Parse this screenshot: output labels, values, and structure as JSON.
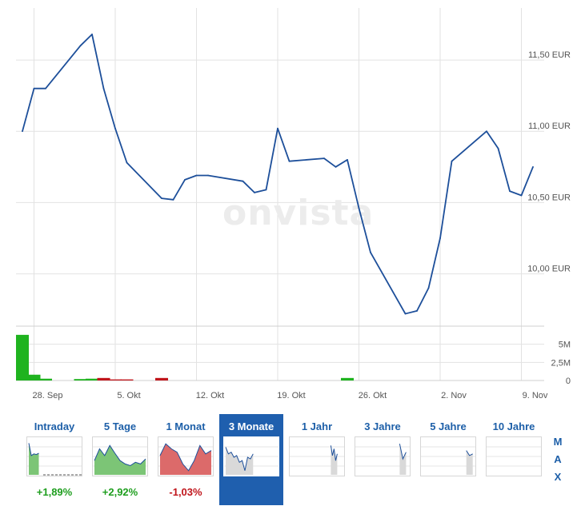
{
  "chart_data": {
    "type": "line",
    "currency_unit": "EUR",
    "x": [
      "2023-09-27",
      "2023-09-28",
      "2023-09-29",
      "2023-10-02",
      "2023-10-03",
      "2023-10-04",
      "2023-10-05",
      "2023-10-06",
      "2023-10-09",
      "2023-10-10",
      "2023-10-11",
      "2023-10-12",
      "2023-10-13",
      "2023-10-16",
      "2023-10-17",
      "2023-10-18",
      "2023-10-19",
      "2023-10-20",
      "2023-10-23",
      "2023-10-24",
      "2023-10-25",
      "2023-10-26",
      "2023-10-27",
      "2023-10-30",
      "2023-10-31",
      "2023-11-01",
      "2023-11-02",
      "2023-11-03",
      "2023-11-06",
      "2023-11-07",
      "2023-11-08",
      "2023-11-09",
      "2023-11-10"
    ],
    "values": [
      11.0,
      11.3,
      11.3,
      11.6,
      11.68,
      11.3,
      11.02,
      10.78,
      10.53,
      10.52,
      10.66,
      10.69,
      10.69,
      10.65,
      10.57,
      10.59,
      11.02,
      10.79,
      10.81,
      10.75,
      10.8,
      10.46,
      10.15,
      9.72,
      9.74,
      9.9,
      10.25,
      10.79,
      11.0,
      10.88,
      10.58,
      10.55,
      10.75
    ],
    "y_ticks": [
      "11,50 EUR",
      "11,00 EUR",
      "10,50 EUR",
      "10,00 EUR"
    ],
    "y_tick_values": [
      11.5,
      11.0,
      10.5,
      10.0
    ],
    "ylim": [
      9.65,
      11.82
    ],
    "x_tick_labels": [
      "28. Sep",
      "5. Okt",
      "12. Okt",
      "19. Okt",
      "26. Okt",
      "2. Nov",
      "9. Nov"
    ],
    "x_tick_dates": [
      "2023-09-28",
      "2023-10-05",
      "2023-10-12",
      "2023-10-19",
      "2023-10-26",
      "2023-11-02",
      "2023-11-09"
    ],
    "grid": true,
    "watermark": "onvista",
    "volume": {
      "type": "bar",
      "x": [
        "2023-09-27",
        "2023-09-28",
        "2023-09-29",
        "2023-10-02",
        "2023-10-03",
        "2023-10-04",
        "2023-10-05",
        "2023-10-06",
        "2023-10-09",
        "2023-10-25"
      ],
      "values": [
        6.3,
        0.8,
        0.25,
        0.2,
        0.25,
        0.35,
        0.15,
        0.15,
        0.35,
        0.35
      ],
      "colors": [
        "#1fb31f",
        "#1fb31f",
        "#1fb31f",
        "#1fb31f",
        "#1fb31f",
        "#c0151b",
        "#c0151b",
        "#c0151b",
        "#c0151b",
        "#1fb31f"
      ],
      "y_ticks": [
        "5M",
        "2,5M",
        "0"
      ],
      "y_tick_values": [
        5,
        2.5,
        0
      ],
      "ylim": [
        0,
        7.5
      ]
    },
    "line_color": "#1d4f9a",
    "grid_color": "#e2e2e2"
  },
  "range_tabs": [
    {
      "label": "Intraday",
      "change": "+1,89%",
      "change_dir": "pos",
      "thumb_fill": "#7cc576",
      "thumb": [
        0.92,
        0.55,
        0.6,
        0.58,
        0.62
      ],
      "thumb_split": 0.22,
      "active": false
    },
    {
      "label": "5 Tage",
      "change": "+2,92%",
      "change_dir": "pos",
      "thumb_fill": "#7cc576",
      "thumb": [
        0.4,
        0.75,
        0.55,
        0.85,
        0.62,
        0.4,
        0.3,
        0.25,
        0.35,
        0.3,
        0.45
      ],
      "thumb_split": 1,
      "active": false
    },
    {
      "label": "1 Monat",
      "change": "-1,03%",
      "change_dir": "neg",
      "thumb_fill": "#dc6a6a",
      "thumb": [
        0.55,
        0.9,
        0.75,
        0.65,
        0.3,
        0.1,
        0.4,
        0.85,
        0.6,
        0.7
      ],
      "thumb_split": 1,
      "active": false
    },
    {
      "label": "3 Monate",
      "change": "",
      "change_dir": "pos",
      "thumb_fill": "#d9d9d9",
      "thumb": [
        0.8,
        0.6,
        0.65,
        0.5,
        0.55,
        0.35,
        0.4,
        0.1,
        0.5,
        0.45,
        0.6
      ],
      "thumb_split": 0.55,
      "active": true
    },
    {
      "label": "1 Jahr",
      "change": "",
      "change_dir": "pos",
      "thumb_fill": "#d9d9d9",
      "thumb": [
        0.85,
        0.55,
        0.75,
        0.4,
        0.6
      ],
      "thumb_split": 0.9,
      "active": false
    },
    {
      "label": "3 Jahre",
      "change": "",
      "change_dir": "pos",
      "thumb_fill": "#d9d9d9",
      "thumb": [
        0.9,
        0.45,
        0.65
      ],
      "thumb_split": 0.96,
      "active": false
    },
    {
      "label": "5 Jahre",
      "change": "",
      "change_dir": "pos",
      "thumb_fill": "#d9d9d9",
      "thumb": [
        0.7,
        0.55,
        0.6
      ],
      "thumb_split": 0.98,
      "active": false
    },
    {
      "label": "10 Jahre",
      "change": "",
      "change_dir": "pos",
      "thumb_fill": "#d9d9d9",
      "thumb": [],
      "thumb_split": 1,
      "active": false
    }
  ],
  "max_button": [
    "M",
    "A",
    "X"
  ]
}
